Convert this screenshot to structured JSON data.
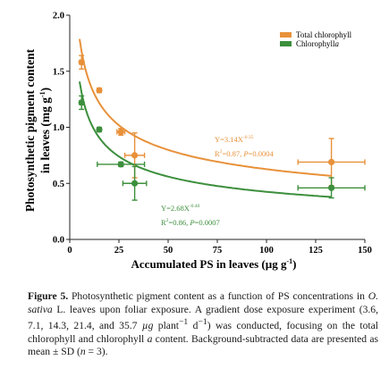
{
  "chart_data": {
    "type": "scatter",
    "xlabel_main": "Accumulated PS  in leaves (µg g",
    "xlabel_sup": "-1",
    "xlabel_end": ")",
    "ylabel_line1": "Photosynthetic pigment content",
    "ylabel_line2_main": "in leaves (mg g",
    "ylabel_line2_sup": "-1",
    "ylabel_line2_end": ")",
    "xlim": [
      0,
      150
    ],
    "ylim": [
      0.0,
      2.0
    ],
    "xticks": [
      "0",
      "25",
      "50",
      "75",
      "100",
      "125",
      "150"
    ],
    "yticks": [
      "0.0",
      "0.5",
      "1.0",
      "1.5",
      "2.0"
    ],
    "series": [
      {
        "name": "Total chlorophyll",
        "color": "#e8913a",
        "points": [
          {
            "x": 6,
            "y": 1.58,
            "xerr": 1,
            "yerr": 0.06
          },
          {
            "x": 15,
            "y": 1.33,
            "xerr": 1,
            "yerr": 0.02
          },
          {
            "x": 26,
            "y": 0.96,
            "xerr": 2,
            "yerr": 0.03
          },
          {
            "x": 33,
            "y": 0.75,
            "xerr": 5,
            "yerr": 0.2
          },
          {
            "x": 133,
            "y": 0.69,
            "xerr": 17,
            "yerr": 0.21
          }
        ],
        "fit": {
          "a": 3.14,
          "b": -0.35
        }
      },
      {
        "name": "Chlorophyll a",
        "color": "#3c8f3c",
        "points": [
          {
            "x": 6,
            "y": 1.22,
            "xerr": 1,
            "yerr": 0.06
          },
          {
            "x": 15,
            "y": 0.98,
            "xerr": 1,
            "yerr": 0.02
          },
          {
            "x": 26,
            "y": 0.67,
            "xerr": 12,
            "yerr": 0.02
          },
          {
            "x": 33,
            "y": 0.5,
            "xerr": 6,
            "yerr": 0.15
          },
          {
            "x": 133,
            "y": 0.46,
            "xerr": 17,
            "yerr": 0.09
          }
        ],
        "fit": {
          "a": 2.68,
          "b": -0.4
        }
      }
    ],
    "legend": {
      "placement": "top-right",
      "items": [
        {
          "label": "Total chlorophyll",
          "italic_suffix": ""
        },
        {
          "label": "Chlorophyll",
          "italic_suffix": "a"
        }
      ]
    },
    "annotations": {
      "orange": {
        "eq_main": "Y=3.14X",
        "eq_sup": "-0.35",
        "r_main": "R",
        "r_sup": "2",
        "r_rest": "=0.87,  ",
        "p_label": "P",
        "p_rest": "=0.0004"
      },
      "green": {
        "eq_main": "Y=2.68X",
        "eq_sup": "-0.40",
        "r_main": "R",
        "r_sup": "2",
        "r_rest": "=0.86,  ",
        "p_label": "P",
        "p_rest": "=0.0007"
      }
    }
  },
  "caption": {
    "label": "Figure 5.",
    "text_1": " Photosynthetic pigment content as a function of PS concentrations in ",
    "species": "O. sativa",
    "text_2": " L. leaves upon foliar exposure. A gradient dose exposure experiment (3.6, 7.1, 14.3, 21.4, and 35.7 ",
    "unit_mu": "µg",
    "text_3": " plant",
    "sup_1": "−1",
    "text_4": " d",
    "sup_2": "−1",
    "text_5": ") was conducted, focusing on the total chlorophyll and chlorophyll ",
    "chl_a": "a",
    "text_6": " content. Background-subtracted data are presented as mean ± SD (",
    "n_label": "n",
    "text_7": " = 3)."
  }
}
